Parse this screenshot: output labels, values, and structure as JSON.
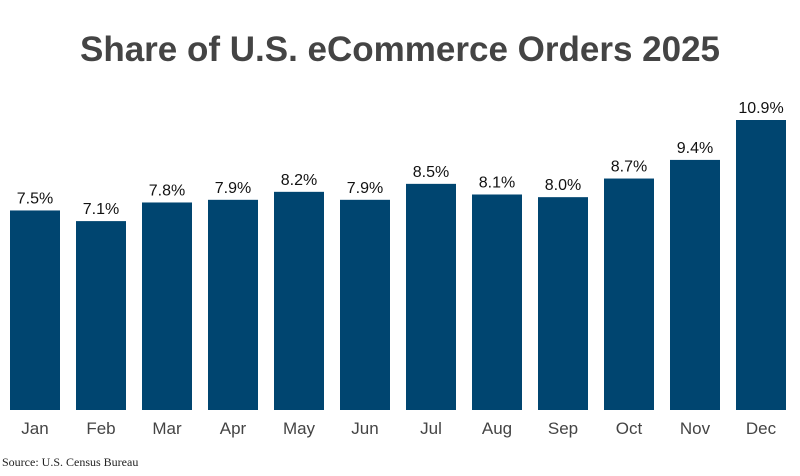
{
  "chart_data": {
    "type": "bar",
    "title": "Share of U.S. eCommerce Orders 2025",
    "categories": [
      "Jan",
      "Feb",
      "Mar",
      "Apr",
      "May",
      "Jun",
      "Jul",
      "Aug",
      "Sep",
      "Oct",
      "Nov",
      "Dec"
    ],
    "values": [
      7.5,
      7.1,
      7.8,
      7.9,
      8.2,
      7.9,
      8.5,
      8.1,
      8.0,
      8.7,
      9.4,
      10.9
    ],
    "data_labels": [
      "7.5%",
      "7.1%",
      "7.8%",
      "7.9%",
      "8.2%",
      "7.9%",
      "8.5%",
      "8.1%",
      "8.0%",
      "8.7%",
      "9.4%",
      "10.9%"
    ],
    "xlabel": "",
    "ylabel": "",
    "ylim": [
      0,
      10.9
    ],
    "grid": false,
    "bar_color": "#004570",
    "source": "Source: U.S. Census Bureau"
  }
}
